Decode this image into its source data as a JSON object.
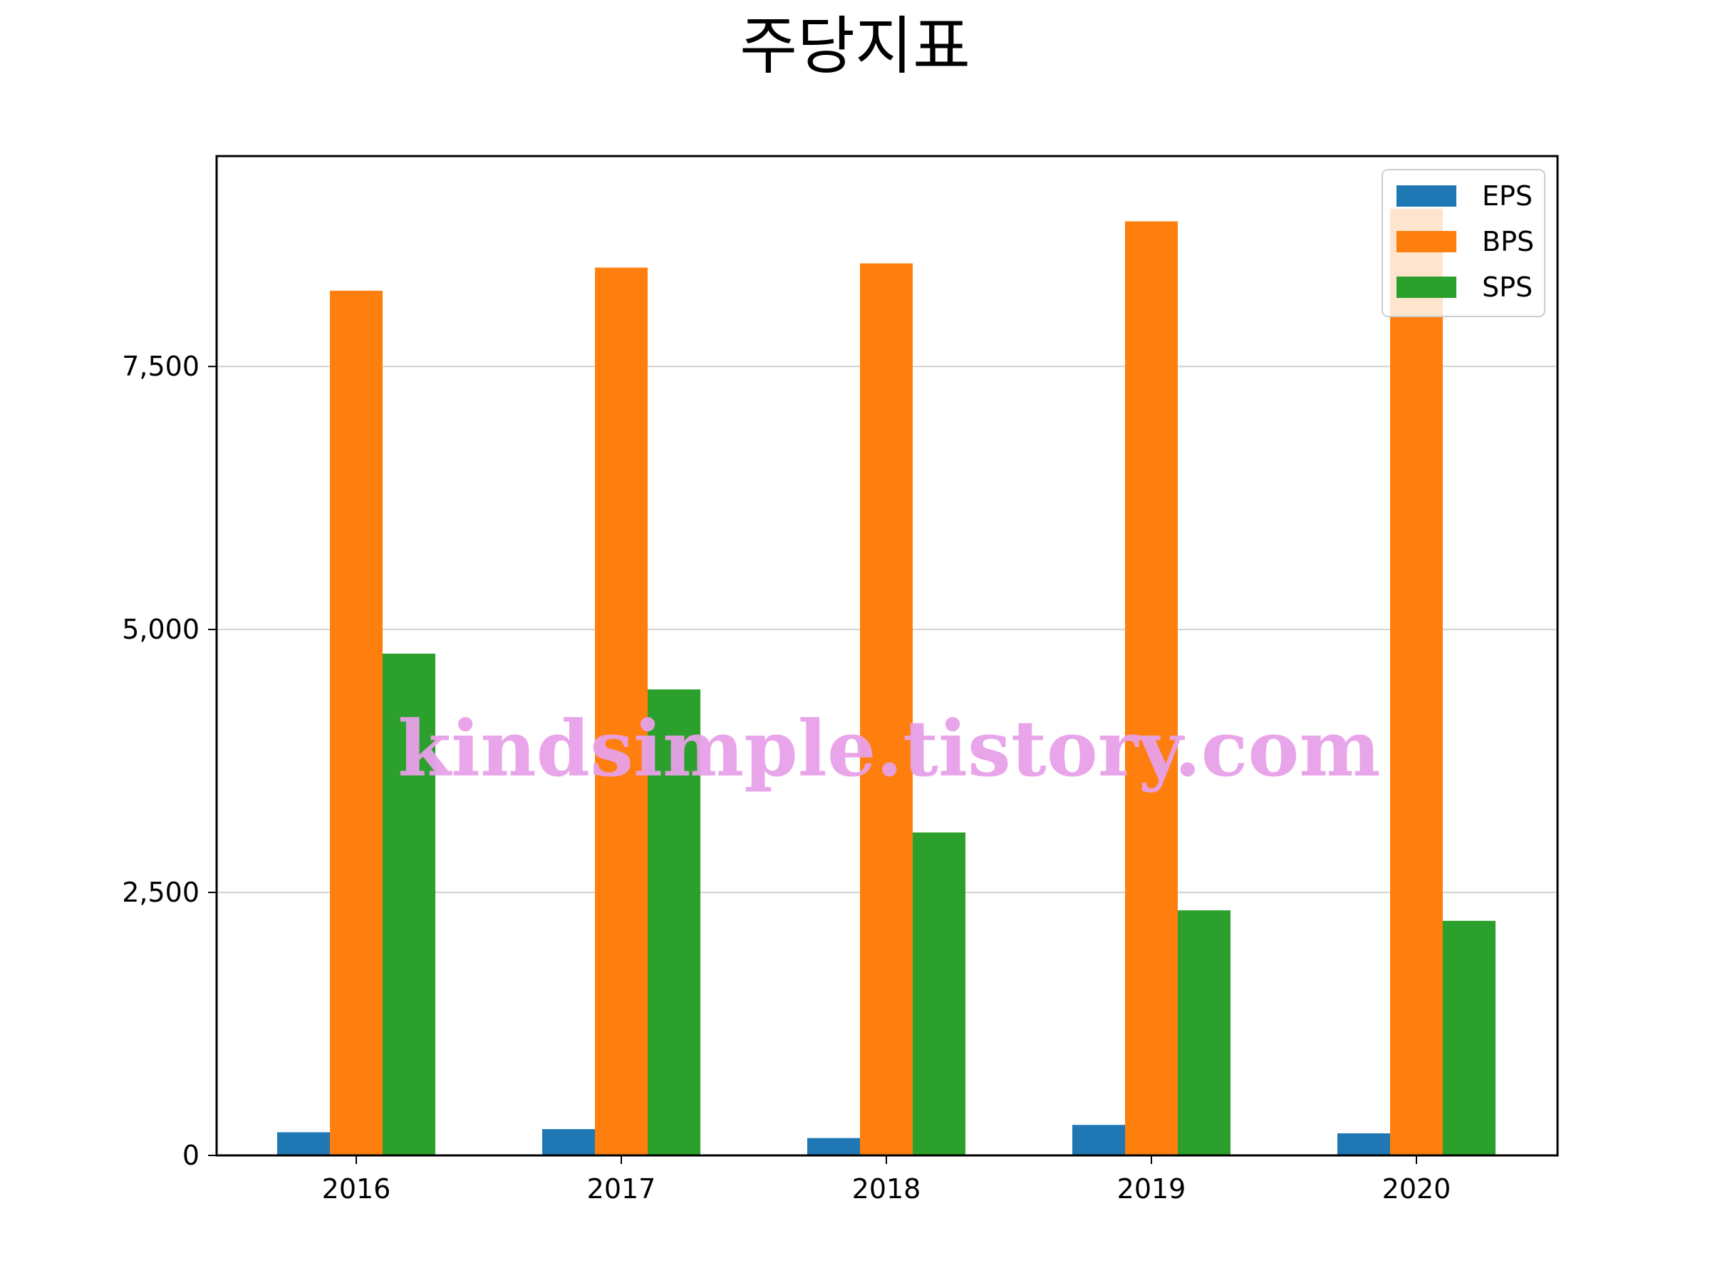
{
  "chart_data": {
    "type": "bar",
    "title": "주당지표",
    "categories": [
      "2016",
      "2017",
      "2018",
      "2019",
      "2020"
    ],
    "series": [
      {
        "name": "EPS",
        "color": "#1f77b4",
        "values": [
          220,
          250,
          165,
          290,
          210
        ]
      },
      {
        "name": "BPS",
        "color": "#ff7f0e",
        "values": [
          8220,
          8440,
          8480,
          8880,
          9000
        ]
      },
      {
        "name": "SPS",
        "color": "#2ca02c",
        "values": [
          4770,
          4430,
          3070,
          2330,
          2230
        ]
      }
    ],
    "ylim": [
      0,
      9500
    ],
    "yticks": [
      0,
      2500,
      5000,
      7500
    ],
    "ytick_labels": [
      "0",
      "2,500",
      "5,000",
      "7,500"
    ],
    "grid": "y",
    "legend_position": "top-right"
  },
  "watermark": "kindsimple.tistory.com"
}
